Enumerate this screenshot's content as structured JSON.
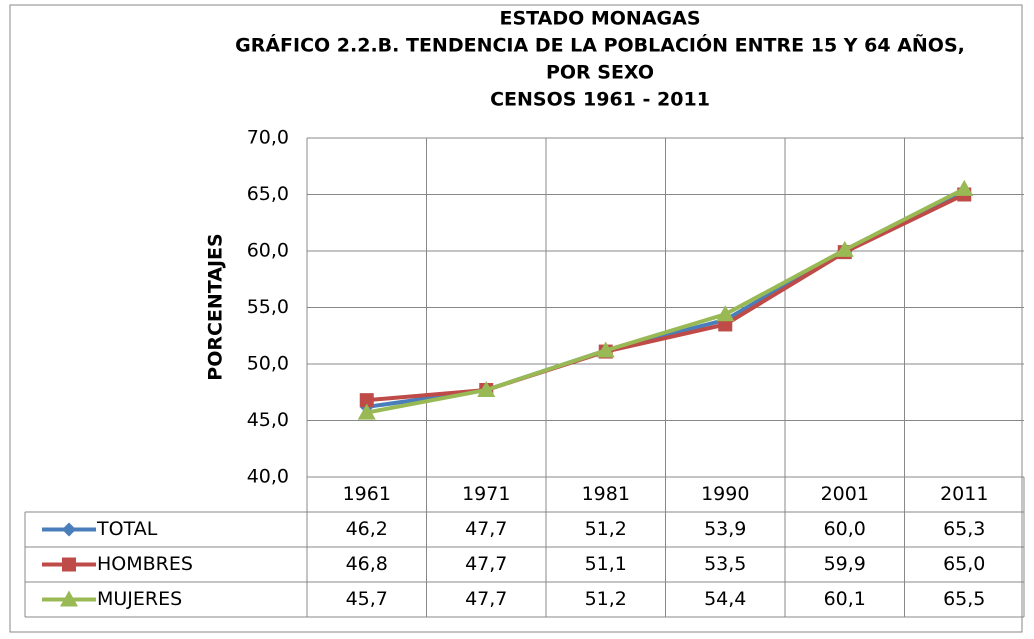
{
  "chart_data": {
    "type": "line",
    "title": [
      "ESTADO MONAGAS",
      "GRÁFICO 2.2.B. TENDENCIA DE LA POBLACIÓN ENTRE 15 Y 64 AÑOS,",
      "POR SEXO",
      "CENSOS 1961 - 2011"
    ],
    "y_label": "PORCENTAJES",
    "categories": [
      "1961",
      "1971",
      "1981",
      "1990",
      "2001",
      "2011"
    ],
    "series": [
      {
        "name": "TOTAL",
        "color": "#4a7ebb",
        "marker": "diamond",
        "values": [
          46.2,
          47.7,
          51.2,
          53.9,
          60.0,
          65.3
        ],
        "value_labels": [
          "46,2",
          "47,7",
          "51,2",
          "53,9",
          "60,0",
          "65,3"
        ]
      },
      {
        "name": "HOMBRES",
        "color": "#be4b48",
        "marker": "square",
        "values": [
          46.8,
          47.7,
          51.1,
          53.5,
          59.9,
          65.0
        ],
        "value_labels": [
          "46,8",
          "47,7",
          "51,1",
          "53,5",
          "59,9",
          "65,0"
        ]
      },
      {
        "name": "MUJERES",
        "color": "#98b954",
        "marker": "triangle",
        "values": [
          45.7,
          47.7,
          51.2,
          54.4,
          60.1,
          65.5
        ],
        "value_labels": [
          "45,7",
          "47,7",
          "51,2",
          "54,4",
          "60,1",
          "65,5"
        ]
      }
    ],
    "ylim": [
      40,
      70
    ],
    "yticks": [
      {
        "value": 40,
        "label": "40,0"
      },
      {
        "value": 45,
        "label": "45,0"
      },
      {
        "value": 50,
        "label": "50,0"
      },
      {
        "value": 55,
        "label": "55,0"
      },
      {
        "value": 60,
        "label": "60,0"
      },
      {
        "value": 65,
        "label": "65,0"
      },
      {
        "value": 70,
        "label": "70,0"
      }
    ],
    "grid": true,
    "data_table": true
  }
}
